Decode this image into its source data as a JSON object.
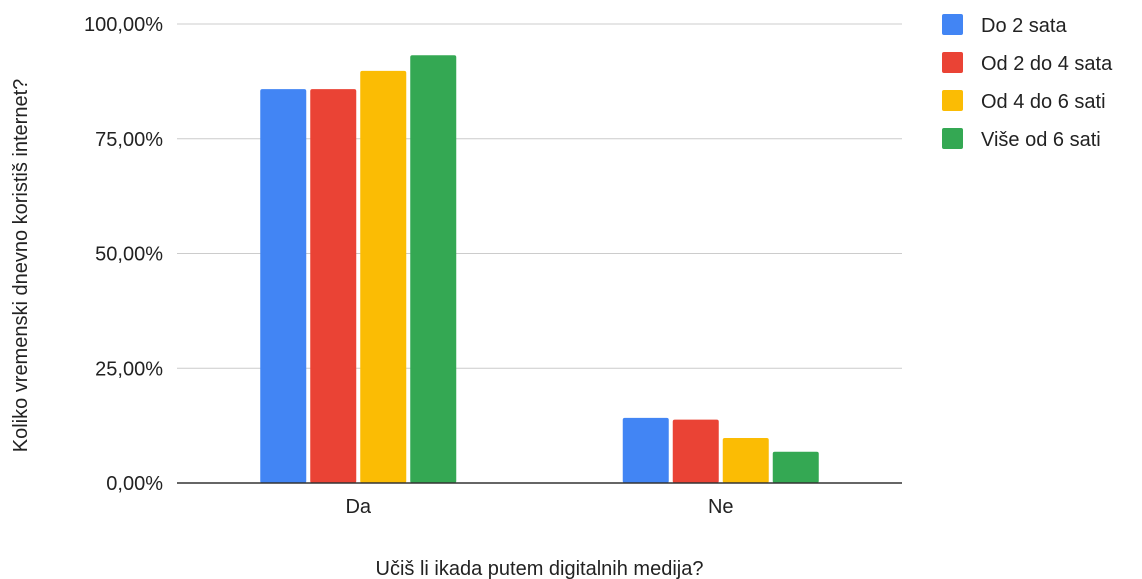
{
  "chart_data": {
    "type": "bar",
    "xlabel": "Učiš li ikada putem digitalnih medija?",
    "ylabel": "Koliko vremenski dnevno koristiš internet?",
    "categories": [
      "Da",
      "Ne"
    ],
    "ylim": [
      0,
      100
    ],
    "yticks": [
      0,
      25,
      50,
      75,
      100
    ],
    "ytick_labels": [
      "0,00%",
      "25,00%",
      "50,00%",
      "75,00%",
      "100,00%"
    ],
    "grid": true,
    "legend_position": "right",
    "series": [
      {
        "name": "Do 2 sata",
        "color": "#4285F4",
        "values": [
          85.8,
          14.2
        ]
      },
      {
        "name": "Od 2 do 4 sata",
        "color": "#EA4335",
        "values": [
          85.8,
          13.8
        ]
      },
      {
        "name": "Od 4 do 6 sati",
        "color": "#FBBC04",
        "values": [
          89.8,
          9.8
        ]
      },
      {
        "name": "Više od 6 sati",
        "color": "#34A853",
        "values": [
          93.2,
          6.8
        ]
      }
    ]
  }
}
